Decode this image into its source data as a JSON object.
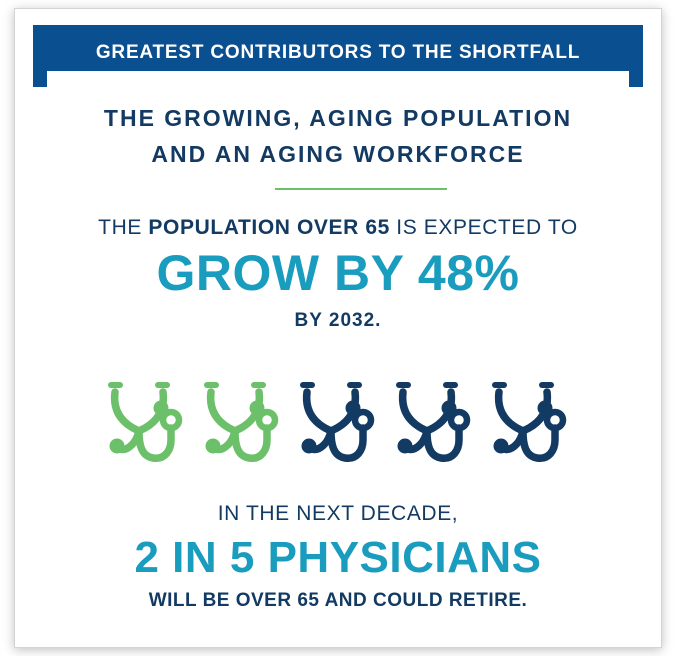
{
  "header": {
    "title": "GREATEST CONTRIBUTORS TO THE SHORTFALL"
  },
  "subtitle": {
    "line1": "THE GROWING, AGING POPULATION",
    "line2": "AND AN AGING WORKFORCE"
  },
  "stat_population": {
    "intro_prefix": "THE ",
    "intro_bold": "POPULATION OVER 65",
    "intro_suffix": " IS EXPECTED TO",
    "headline": "GROW BY 48%",
    "tail": "BY 2032."
  },
  "stethoscopes": {
    "icon": "stethoscope-icon",
    "total": 5,
    "highlighted": 2,
    "highlight_color": "#6cc06a",
    "base_color": "#133a63"
  },
  "stat_physicians": {
    "intro": "IN THE NEXT DECADE,",
    "headline": "2 IN 5 PHYSICIANS",
    "tail": "WILL BE OVER 65 AND COULD RETIRE."
  },
  "colors": {
    "banner": "#0a4f8f",
    "navy_text": "#133a63",
    "accent_teal": "#1a9cbe",
    "accent_green": "#6cc06a"
  }
}
